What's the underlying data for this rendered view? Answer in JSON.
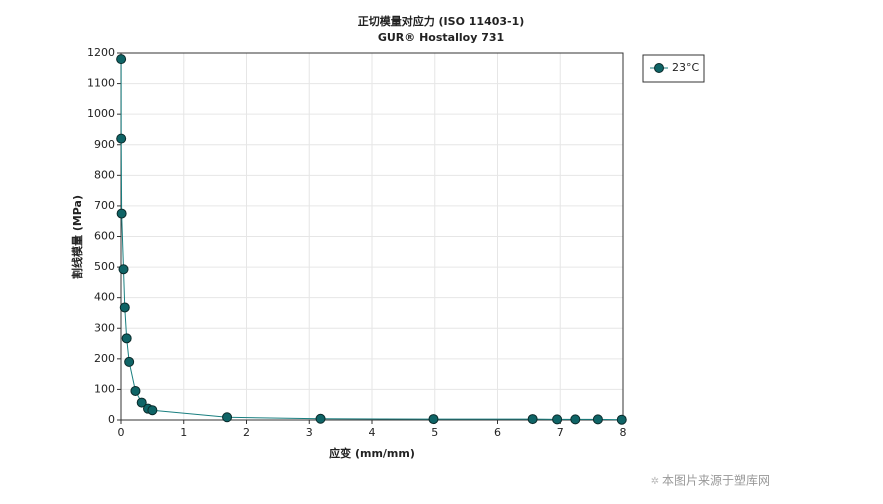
{
  "chart_data": {
    "type": "line",
    "title": "正切模量对应力 (ISO 11403-1)",
    "subtitle": "GUR® Hostalloy 731",
    "x_label": "应变 (mm/mm)",
    "y_label": "割线模量 (MPa)",
    "x": [
      0.002,
      0.003,
      0.01,
      0.04,
      0.06,
      0.09,
      0.13,
      0.23,
      0.33,
      0.43,
      0.5,
      1.69,
      3.18,
      4.98,
      6.56,
      6.95,
      7.24,
      7.6,
      7.98
    ],
    "series": [
      {
        "name": "23°C",
        "color": "#1a7f80",
        "marker_color": "#0f6466",
        "values": [
          1180,
          920,
          675,
          493,
          368,
          267,
          190,
          95,
          57,
          37,
          32,
          9,
          4,
          3,
          3,
          2,
          2,
          2,
          1
        ]
      }
    ],
    "xlim": [
      0,
      8
    ],
    "xticks": [
      0,
      1,
      2,
      3,
      4,
      5,
      6,
      7,
      8
    ],
    "ylim": [
      0,
      1200
    ],
    "yticks": [
      0,
      100,
      200,
      300,
      400,
      500,
      600,
      700,
      800,
      900,
      1000,
      1100,
      1200
    ],
    "grid": true,
    "watermark": "本图片来源于塑库网"
  }
}
